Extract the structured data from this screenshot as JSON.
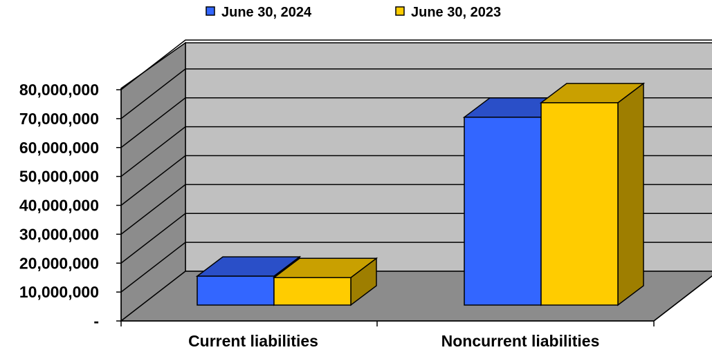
{
  "chart_data": {
    "type": "bar",
    "categories": [
      "Current liabilities",
      "Noncurrent liabilities"
    ],
    "series": [
      {
        "name": "June 30, 2024",
        "values": [
          10000000,
          65000000
        ],
        "color": "#3366ff",
        "top_color": "#2a4fc8",
        "side_color": "#1f3a99"
      },
      {
        "name": "June 30, 2023",
        "values": [
          9500000,
          70000000
        ],
        "color": "#ffcc00",
        "top_color": "#c9a000",
        "side_color": "#9e7e00"
      }
    ],
    "ylim": [
      0,
      80000000
    ],
    "yticks": [
      0,
      10000000,
      20000000,
      30000000,
      40000000,
      50000000,
      60000000,
      70000000,
      80000000
    ],
    "ytick_labels": [
      "-",
      "10,000,000",
      "20,000,000",
      "30,000,000",
      "40,000,000",
      "50,000,000",
      "60,000,000",
      "70,000,000",
      "80,000,000"
    ],
    "grid": true,
    "legend_position": "top-center",
    "wall_color": "#c0c0c0",
    "side_wall_color": "#8c8c8c",
    "floor_color": "#8c8c8c"
  }
}
